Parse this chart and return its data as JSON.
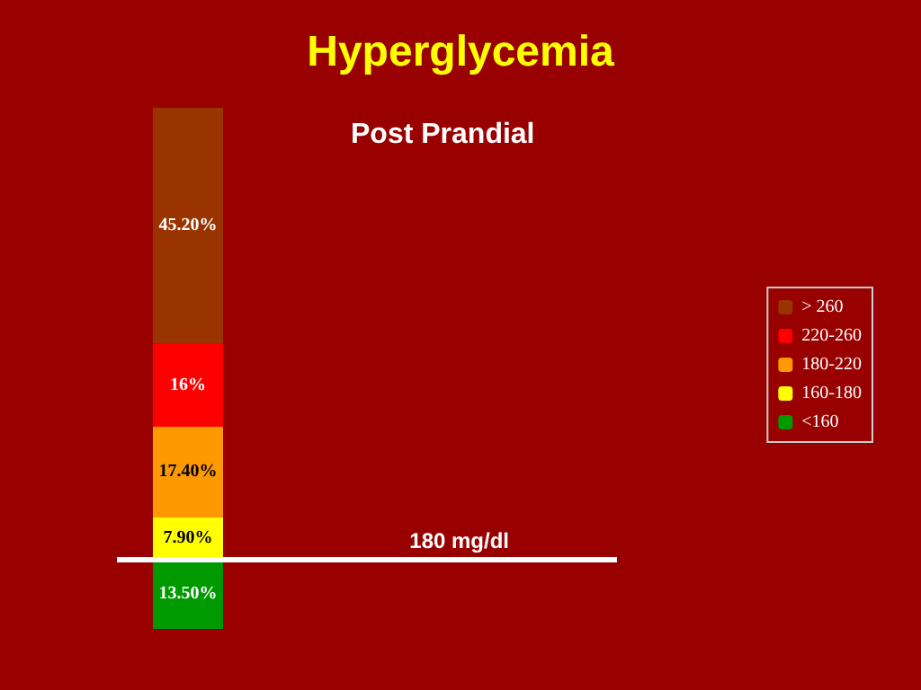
{
  "chart_data": {
    "type": "bar",
    "title": "Hyperglycemia",
    "subtitle": "Post Prandial",
    "categories": [
      null
    ],
    "stacked": true,
    "legend": "right",
    "series": [
      {
        "name": "<160",
        "color": "#009900",
        "values": [
          13.5
        ],
        "value_labels": [
          "13.50%"
        ]
      },
      {
        "name": "160-180",
        "color": "#ffff00",
        "values": [
          7.9
        ],
        "value_labels": [
          "7.90%"
        ]
      },
      {
        "name": "180-220",
        "color": "#ff9900",
        "values": [
          17.4
        ],
        "value_labels": [
          "17.40%"
        ]
      },
      {
        "name": "220-260",
        "color": "#ff0000",
        "values": [
          16
        ],
        "value_labels": [
          "16%"
        ]
      },
      {
        "name": "> 260",
        "color": "#993300",
        "values": [
          45.2
        ],
        "value_labels": [
          "45.20%"
        ]
      }
    ],
    "ref_lines": [
      {
        "axis": "y",
        "value": 13.5,
        "label": "180 mg/dl",
        "color": "#ffffff"
      }
    ]
  }
}
